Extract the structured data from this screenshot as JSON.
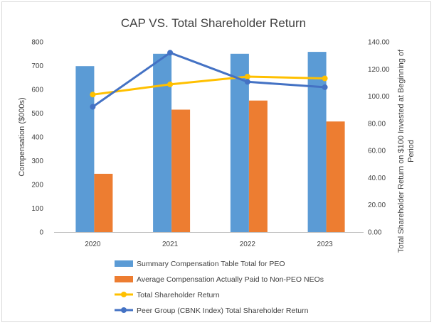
{
  "chart_data": {
    "type": "bar+line",
    "title": "CAP VS. Total Shareholder Return",
    "categories": [
      "2020",
      "2021",
      "2022",
      "2023"
    ],
    "y_left": {
      "label": "Compensation ($000s)",
      "range": [
        0,
        800
      ],
      "ticks": [
        "0",
        "100",
        "200",
        "300",
        "400",
        "500",
        "600",
        "700",
        "800"
      ]
    },
    "y_right": {
      "label_line1": "Total Shareholder Return on $100 Invested at Beginning of",
      "label_line2": "Period",
      "range": [
        0,
        140
      ],
      "ticks": [
        "0.00",
        "20.00",
        "40.00",
        "60.00",
        "80.00",
        "100.00",
        "120.00",
        "140.00"
      ]
    },
    "bar_series": [
      {
        "name": "Summary Compensation Table Total for PEO",
        "color": "#5b9bd5",
        "axis": "left",
        "values": [
          698,
          750,
          750,
          758
        ]
      },
      {
        "name": "Average Compensation Actually Paid to Non-PEO NEOs",
        "color": "#ed7d31",
        "axis": "left",
        "values": [
          245,
          515,
          553,
          465
        ]
      }
    ],
    "line_series": [
      {
        "name": "Total Shareholder Return",
        "color": "#ffc000",
        "axis": "right",
        "values": [
          101.2,
          108.7,
          114.4,
          113.1
        ]
      },
      {
        "name": "Peer Group (CBNK Index) Total Shareholder Return",
        "color": "#4472c4",
        "axis": "right",
        "values": [
          92.2,
          132.0,
          110.6,
          106.6
        ]
      }
    ],
    "legend_position": "bottom",
    "grid": false
  }
}
